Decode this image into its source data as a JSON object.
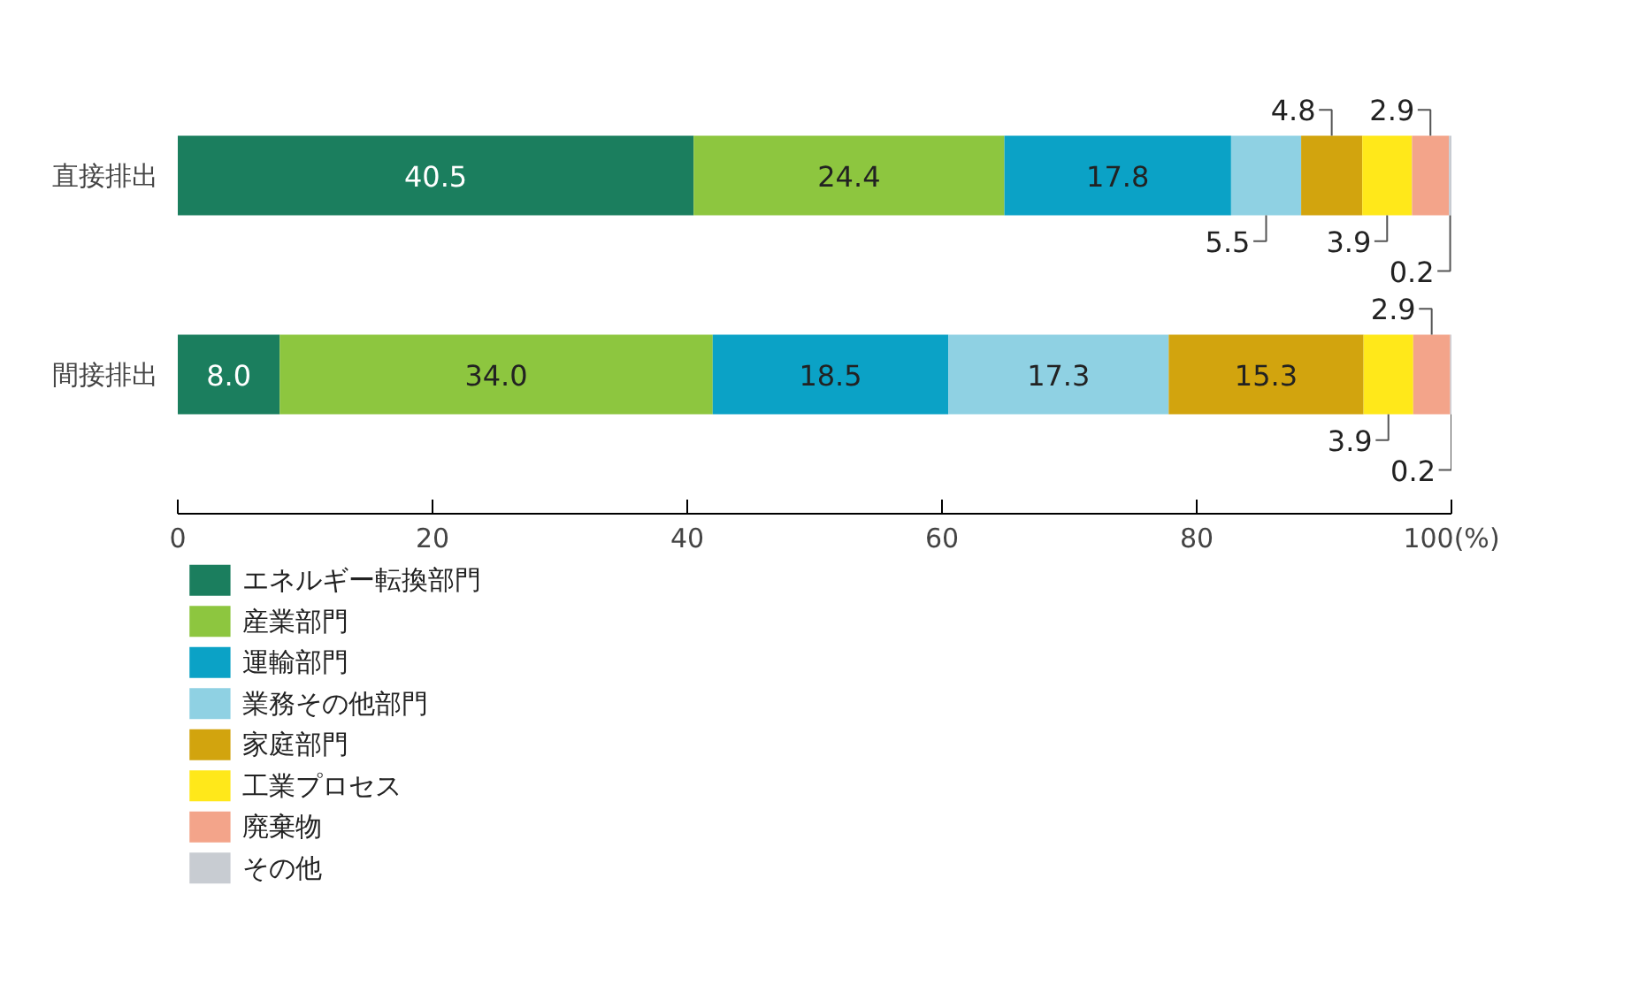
{
  "chart_data": {
    "type": "bar",
    "orientation": "horizontal",
    "stacked": true,
    "categories": [
      "直接排出",
      "間接排出"
    ],
    "series": [
      {
        "name": "エネルギー転換部門",
        "color": "#1b7e5e",
        "values": [
          40.5,
          8.0
        ],
        "value_labels": [
          "40.5",
          "8.0"
        ]
      },
      {
        "name": "産業部門",
        "color": "#8dc63f",
        "values": [
          24.4,
          34.0
        ],
        "value_labels": [
          "24.4",
          "34.0"
        ]
      },
      {
        "name": "運輸部門",
        "color": "#0ba2c6",
        "values": [
          17.8,
          18.5
        ],
        "value_labels": [
          "17.8",
          "18.5"
        ]
      },
      {
        "name": "業務その他部門",
        "color": "#8fd1e3",
        "values": [
          5.5,
          17.3
        ],
        "value_labels": [
          "5.5",
          "17.3"
        ]
      },
      {
        "name": "家庭部門",
        "color": "#d2a40e",
        "values": [
          4.8,
          15.3
        ],
        "value_labels": [
          "4.8",
          "15.3"
        ]
      },
      {
        "name": "工業プロセス",
        "color": "#ffe81a",
        "values": [
          3.9,
          3.9
        ],
        "value_labels": [
          "3.9",
          "3.9"
        ]
      },
      {
        "name": "廃棄物",
        "color": "#f3a48a",
        "values": [
          2.9,
          2.9
        ],
        "value_labels": [
          "2.9",
          "2.9"
        ]
      },
      {
        "name": "その他",
        "color": "#c8ccd2",
        "values": [
          0.2,
          0.2
        ],
        "value_labels": [
          "0.2",
          "0.2"
        ]
      }
    ],
    "xlim": [
      0,
      100
    ],
    "xticks": [
      0,
      20,
      40,
      60,
      80,
      {
        "value": 100,
        "label": "100(%)"
      }
    ],
    "grid": false,
    "legend": "bottom"
  }
}
